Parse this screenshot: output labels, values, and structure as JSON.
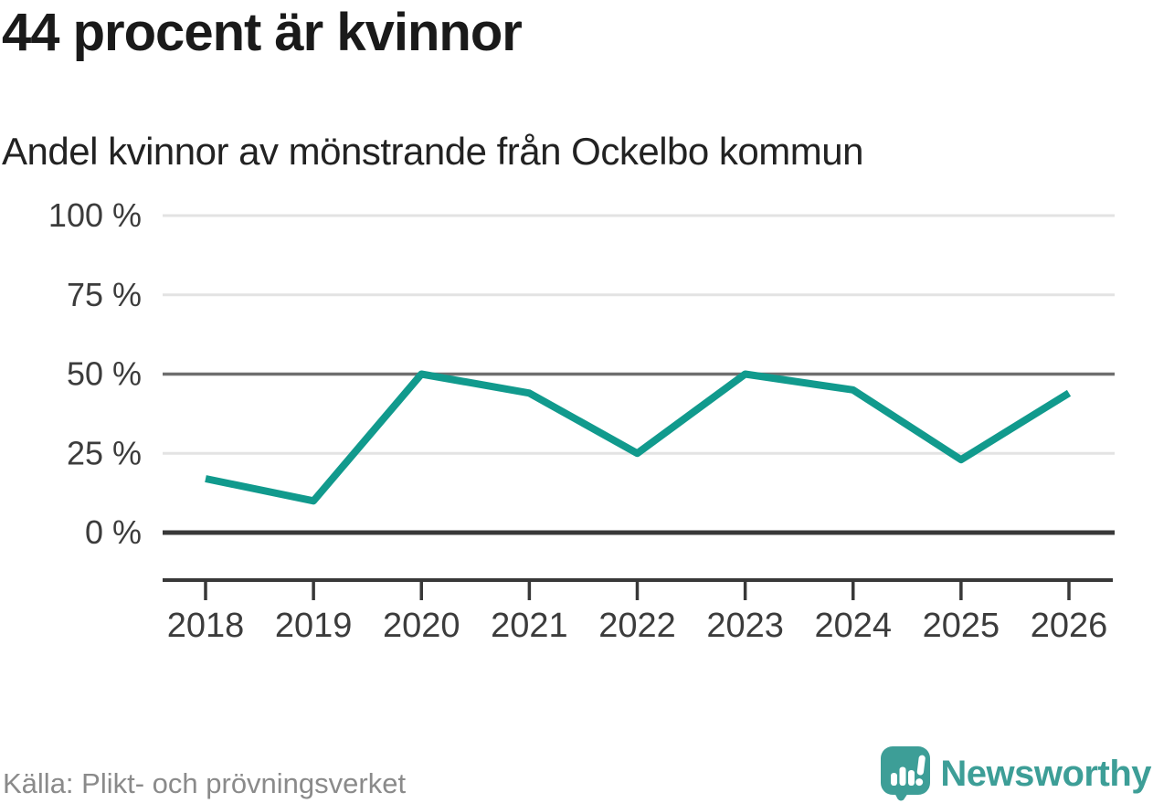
{
  "title": "44 procent är kvinnor",
  "subtitle": "Andel kvinnor av mönstrande från Ockelbo kommun",
  "footer": {
    "source": "Källa: Plikt- och prövningsverket",
    "brand": "Newsworthy",
    "logo_icon": "bar-chart-speech-bubble-with-exclamation"
  },
  "colors": {
    "line": "#119a8d",
    "brand_teal": "#3d9e97",
    "grid_light": "#e3e3e3",
    "grid_mid": "#6e6e6e",
    "axis_dark": "#383838",
    "tick_text": "#3c3c3c"
  },
  "chart_data": {
    "type": "line",
    "x": [
      2018,
      2019,
      2020,
      2021,
      2022,
      2023,
      2024,
      2025,
      2026
    ],
    "series": [
      {
        "name": "Andel kvinnor av mönstrande från Ockelbo kommun",
        "values": [
          17,
          10,
          50,
          44,
          25,
          50,
          45,
          23,
          44
        ]
      }
    ],
    "title": "44 procent är kvinnor",
    "xlabel": "",
    "ylabel": "",
    "ylim": [
      0,
      100
    ],
    "yticks": [
      {
        "value": 100,
        "label": "100 %"
      },
      {
        "value": 75,
        "label": "75 %"
      },
      {
        "value": 50,
        "label": "50 %"
      },
      {
        "value": 25,
        "label": "25 %"
      },
      {
        "value": 0,
        "label": "0 %"
      }
    ],
    "grid": "horizontal-only",
    "emphasized_gridline": 50,
    "baseline_gridline": 0,
    "legend": "none"
  }
}
